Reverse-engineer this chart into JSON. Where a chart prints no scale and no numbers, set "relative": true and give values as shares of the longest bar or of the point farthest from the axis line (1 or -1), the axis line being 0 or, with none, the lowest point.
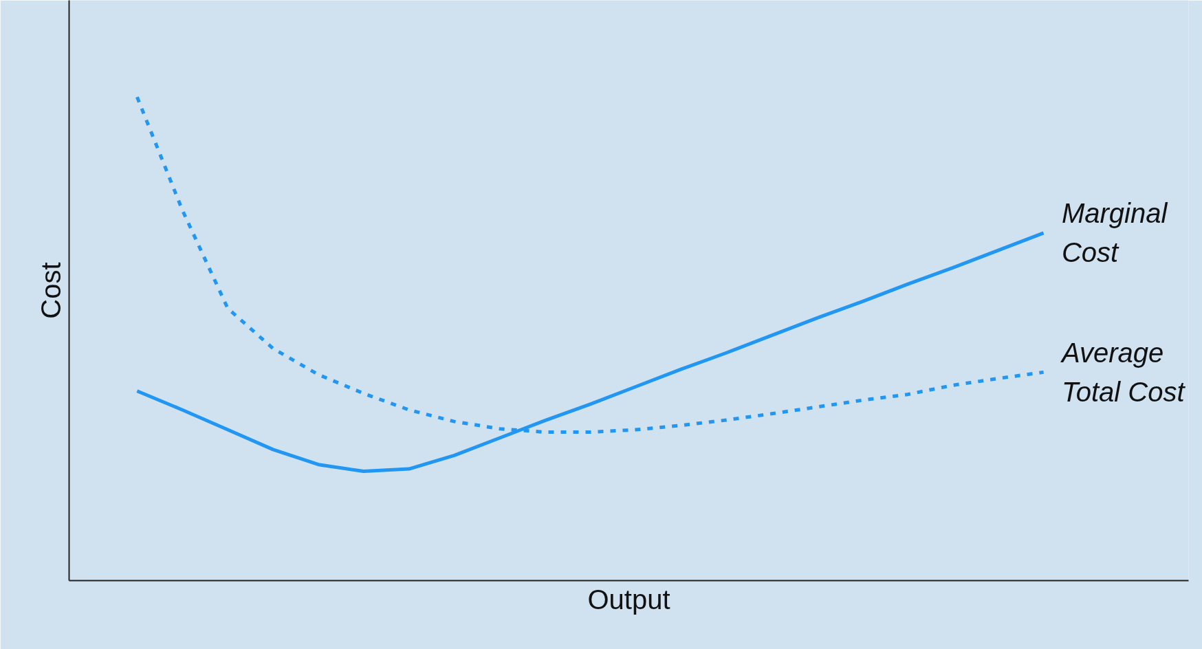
{
  "chart_data": {
    "type": "line",
    "relative": true,
    "xlabel": "Output",
    "ylabel": "Cost",
    "legend": false,
    "tick_labels": false,
    "categories": [
      null,
      null,
      null,
      null,
      null,
      null,
      null,
      null,
      null,
      null,
      null,
      null,
      null,
      null,
      null,
      null,
      null,
      null,
      null,
      null,
      null
    ],
    "series": [
      {
        "name": "Marginal Cost",
        "color": "#2196f3",
        "line_style": "solid",
        "values": [
          0.392,
          0.353,
          0.312,
          0.271,
          0.24,
          0.226,
          0.231,
          0.259,
          0.295,
          0.331,
          0.365,
          0.401,
          0.437,
          0.471,
          0.507,
          0.543,
          0.577,
          0.613,
          0.647,
          0.683,
          0.719
        ]
      },
      {
        "name": "Average Total Cost",
        "color": "#2196f3",
        "line_style": "dashed",
        "values": [
          1.0,
          0.766,
          0.563,
          0.48,
          0.426,
          0.387,
          0.353,
          0.329,
          0.314,
          0.307,
          0.307,
          0.312,
          0.321,
          0.332,
          0.345,
          0.359,
          0.373,
          0.385,
          0.404,
          0.418,
          0.431
        ]
      }
    ]
  }
}
